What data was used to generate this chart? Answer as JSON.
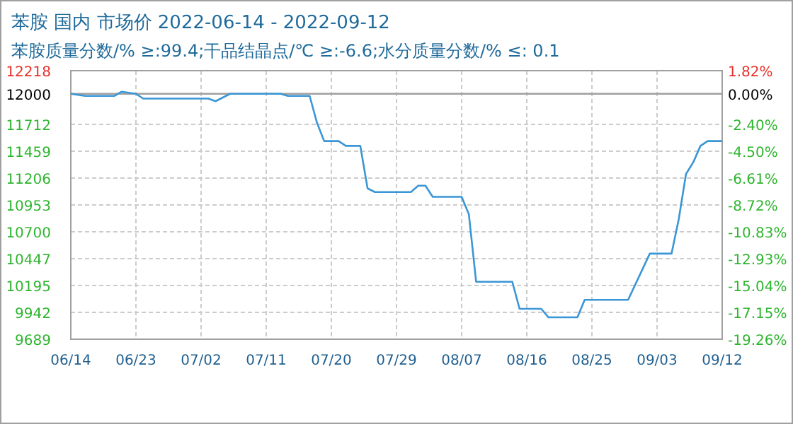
{
  "chart_data": {
    "type": "line",
    "title": "苯胺 国内 市场价 2022-06-14 - 2022-09-12",
    "subtitle": "苯胺质量分数/% ≥:99.4;干品结晶点/℃  ≥:-6.6;水分质量分数/%  ≤: 0.1",
    "x": [
      "2022-06-14",
      "2022-06-16",
      "2022-06-20",
      "2022-06-21",
      "2022-06-23",
      "2022-06-24",
      "2022-07-03",
      "2022-07-04",
      "2022-07-06",
      "2022-07-13",
      "2022-07-14",
      "2022-07-17",
      "2022-07-18",
      "2022-07-19",
      "2022-07-21",
      "2022-07-22",
      "2022-07-24",
      "2022-07-25",
      "2022-07-26",
      "2022-07-31",
      "2022-08-01",
      "2022-08-02",
      "2022-08-03",
      "2022-08-07",
      "2022-08-08",
      "2022-08-09",
      "2022-08-14",
      "2022-08-15",
      "2022-08-18",
      "2022-08-19",
      "2022-08-23",
      "2022-08-24",
      "2022-08-30",
      "2022-09-02",
      "2022-09-05",
      "2022-09-06",
      "2022-09-07",
      "2022-09-08",
      "2022-09-09",
      "2022-09-10",
      "2022-09-12"
    ],
    "series": [
      {
        "color": "#3a96d6",
        "values": [
          12000,
          11980,
          11980,
          12020,
          12000,
          11955,
          11955,
          11930,
          12000,
          12000,
          11980,
          11980,
          11730,
          11555,
          11555,
          11510,
          11510,
          11110,
          11075,
          11075,
          11135,
          11135,
          11030,
          11030,
          10865,
          10230,
          10230,
          9975,
          9975,
          9895,
          9895,
          10060,
          10060,
          10495,
          10495,
          10820,
          11245,
          11355,
          11510,
          11555,
          11555
        ]
      }
    ],
    "xlim": [
      "2022-06-14",
      "2022-09-12"
    ],
    "xticks": [
      {
        "value": "2022-06-14",
        "label": "06/14"
      },
      {
        "value": "2022-06-23",
        "label": "06/23"
      },
      {
        "value": "2022-07-02",
        "label": "07/02"
      },
      {
        "value": "2022-07-11",
        "label": "07/11"
      },
      {
        "value": "2022-07-20",
        "label": "07/20"
      },
      {
        "value": "2022-07-29",
        "label": "07/29"
      },
      {
        "value": "2022-08-07",
        "label": "08/07"
      },
      {
        "value": "2022-08-16",
        "label": "08/16"
      },
      {
        "value": "2022-08-25",
        "label": "08/25"
      },
      {
        "value": "2022-09-03",
        "label": "09/03"
      },
      {
        "value": "2022-09-12",
        "label": "09/12"
      }
    ],
    "ylim": [
      9689,
      12218
    ],
    "yticks": [
      12218,
      12000,
      11712,
      11459,
      11206,
      10953,
      10700,
      10447,
      10195,
      9942,
      9689
    ],
    "y2lim": [
      -19.26,
      1.82
    ],
    "y2ticks": [
      {
        "value": 1.82,
        "label": "1.82%"
      },
      {
        "value": 0,
        "label": "0.00%"
      },
      {
        "value": -2.4,
        "label": "-2.40%"
      },
      {
        "value": -4.5,
        "label": "-4.50%"
      },
      {
        "value": -6.61,
        "label": "-6.61%"
      },
      {
        "value": -8.72,
        "label": "-8.72%"
      },
      {
        "value": -10.83,
        "label": "-10.83%"
      },
      {
        "value": -12.93,
        "label": "-12.93%"
      },
      {
        "value": -15.04,
        "label": "-15.04%"
      },
      {
        "value": -17.15,
        "label": "-17.15%"
      },
      {
        "value": -19.26,
        "label": "-19.26%"
      }
    ],
    "grid": true,
    "ref_lines": [
      {
        "axis": "y",
        "value": 12000,
        "color": "#a0a0a0"
      }
    ]
  }
}
